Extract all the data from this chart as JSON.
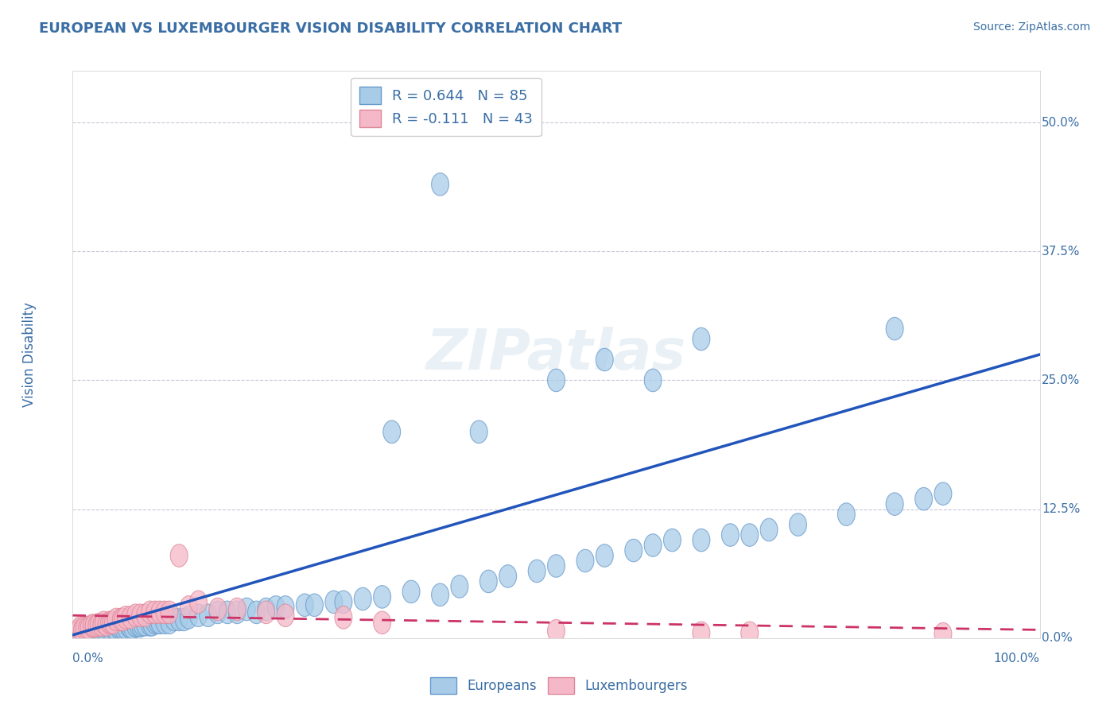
{
  "title": "EUROPEAN VS LUXEMBOURGER VISION DISABILITY CORRELATION CHART",
  "source": "Source: ZipAtlas.com",
  "ylabel": "Vision Disability",
  "xlim": [
    0.0,
    1.0
  ],
  "ylim": [
    0.0,
    0.55
  ],
  "yticks": [
    0.0,
    0.125,
    0.25,
    0.375,
    0.5
  ],
  "ytick_labels": [
    "0.0%",
    "12.5%",
    "25.0%",
    "37.5%",
    "50.0%"
  ],
  "xtick_labels": [
    "0.0%",
    "100.0%"
  ],
  "title_color": "#3a6ea5",
  "tick_color": "#3a6ea5",
  "source_color": "#3a6ea5",
  "background_color": "#ffffff",
  "grid_color": "#c8c8d8",
  "european_color": "#a8cce8",
  "european_edge_color": "#6699cc",
  "luxembourger_color": "#f5b8c8",
  "luxembourger_edge_color": "#dd8899",
  "european_line_color": "#2255bb",
  "luxembourger_line_color": "#cc3366",
  "legend_r_european": "R = 0.644",
  "legend_n_european": "N = 85",
  "legend_r_luxembourger": "R = -0.111",
  "legend_n_luxembourger": "N = 43",
  "watermark": "ZIPatlas",
  "eu_line_x0": 0.0,
  "eu_line_y0": 0.003,
  "eu_line_x1": 1.0,
  "eu_line_y1": 0.275,
  "lx_line_x0": 0.0,
  "lx_line_y0": 0.022,
  "lx_line_x1": 1.0,
  "lx_line_y1": 0.008,
  "european_x": [
    0.005,
    0.008,
    0.01,
    0.012,
    0.015,
    0.018,
    0.02,
    0.022,
    0.025,
    0.028,
    0.03,
    0.032,
    0.035,
    0.038,
    0.04,
    0.042,
    0.045,
    0.048,
    0.05,
    0.052,
    0.055,
    0.058,
    0.06,
    0.062,
    0.065,
    0.068,
    0.07,
    0.072,
    0.075,
    0.08,
    0.082,
    0.085,
    0.088,
    0.09,
    0.095,
    0.1,
    0.105,
    0.11,
    0.115,
    0.12,
    0.13,
    0.14,
    0.15,
    0.16,
    0.17,
    0.18,
    0.19,
    0.2,
    0.21,
    0.22,
    0.24,
    0.25,
    0.27,
    0.28,
    0.3,
    0.32,
    0.35,
    0.38,
    0.4,
    0.43,
    0.45,
    0.48,
    0.5,
    0.53,
    0.55,
    0.58,
    0.6,
    0.62,
    0.65,
    0.68,
    0.7,
    0.72,
    0.75,
    0.8,
    0.85,
    0.88,
    0.9,
    0.65,
    0.33,
    0.42,
    0.5,
    0.55,
    0.6,
    0.38,
    0.85
  ],
  "european_y": [
    0.005,
    0.005,
    0.005,
    0.005,
    0.007,
    0.007,
    0.005,
    0.007,
    0.008,
    0.007,
    0.007,
    0.008,
    0.007,
    0.008,
    0.008,
    0.01,
    0.008,
    0.01,
    0.01,
    0.01,
    0.01,
    0.012,
    0.01,
    0.01,
    0.012,
    0.012,
    0.012,
    0.013,
    0.013,
    0.013,
    0.013,
    0.015,
    0.015,
    0.015,
    0.015,
    0.015,
    0.018,
    0.018,
    0.018,
    0.02,
    0.022,
    0.022,
    0.025,
    0.025,
    0.025,
    0.028,
    0.025,
    0.028,
    0.03,
    0.03,
    0.032,
    0.032,
    0.035,
    0.035,
    0.038,
    0.04,
    0.045,
    0.042,
    0.05,
    0.055,
    0.06,
    0.065,
    0.07,
    0.075,
    0.08,
    0.085,
    0.09,
    0.095,
    0.095,
    0.1,
    0.1,
    0.105,
    0.11,
    0.12,
    0.13,
    0.135,
    0.14,
    0.29,
    0.2,
    0.2,
    0.25,
    0.27,
    0.25,
    0.44,
    0.3
  ],
  "luxembourger_x": [
    0.005,
    0.007,
    0.008,
    0.01,
    0.012,
    0.015,
    0.017,
    0.02,
    0.022,
    0.025,
    0.027,
    0.03,
    0.032,
    0.035,
    0.038,
    0.04,
    0.042,
    0.045,
    0.05,
    0.052,
    0.055,
    0.06,
    0.065,
    0.07,
    0.075,
    0.08,
    0.085,
    0.09,
    0.095,
    0.1,
    0.11,
    0.12,
    0.13,
    0.15,
    0.17,
    0.2,
    0.22,
    0.28,
    0.32,
    0.5,
    0.65,
    0.7,
    0.9
  ],
  "luxembourger_y": [
    0.005,
    0.008,
    0.01,
    0.008,
    0.01,
    0.01,
    0.01,
    0.012,
    0.012,
    0.012,
    0.013,
    0.013,
    0.015,
    0.013,
    0.015,
    0.015,
    0.015,
    0.018,
    0.018,
    0.018,
    0.02,
    0.02,
    0.022,
    0.022,
    0.022,
    0.025,
    0.025,
    0.025,
    0.025,
    0.025,
    0.08,
    0.03,
    0.035,
    0.028,
    0.028,
    0.025,
    0.022,
    0.02,
    0.015,
    0.007,
    0.005,
    0.005,
    0.004
  ]
}
